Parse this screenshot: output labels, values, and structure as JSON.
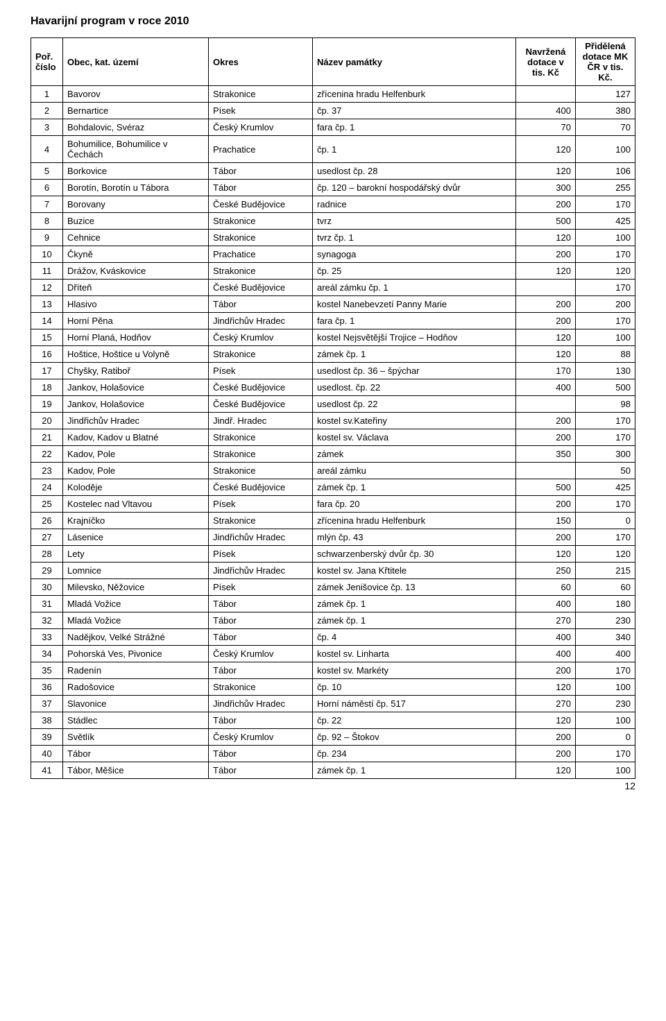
{
  "title": "Havarijní program v roce 2010",
  "page_number": "12",
  "headers": {
    "no": "Poř. číslo",
    "obec": "Obec, kat. území",
    "okres": "Okres",
    "nazev": "Název památky",
    "navrzena": "Navržená dotace v tis. Kč",
    "pridelena": "Přidělená dotace MK ČR v tis. Kč."
  },
  "rows": [
    {
      "no": "1",
      "obec": "Bavorov",
      "okres": "Strakonice",
      "nazev": "zřícenina hradu Helfenburk",
      "nav": "",
      "pri": "127"
    },
    {
      "no": "2",
      "obec": "Bernartice",
      "okres": "Písek",
      "nazev": "čp. 37",
      "nav": "400",
      "pri": "380"
    },
    {
      "no": "3",
      "obec": "Bohdalovic, Svéraz",
      "okres": "Český Krumlov",
      "nazev": "fara čp. 1",
      "nav": "70",
      "pri": "70"
    },
    {
      "no": "4",
      "obec": "Bohumilice, Bohumilice v Čechách",
      "okres": "Prachatice",
      "nazev": "čp. 1",
      "nav": "120",
      "pri": "100"
    },
    {
      "no": "5",
      "obec": "Borkovice",
      "okres": "Tábor",
      "nazev": "usedlost čp. 28",
      "nav": "120",
      "pri": "106"
    },
    {
      "no": "6",
      "obec": "Borotín, Borotín u Tábora",
      "okres": "Tábor",
      "nazev": "čp. 120 – barokní hospodářský dvůr",
      "nav": "300",
      "pri": "255"
    },
    {
      "no": "7",
      "obec": "Borovany",
      "okres": "České Budějovice",
      "nazev": "radnice",
      "nav": "200",
      "pri": "170"
    },
    {
      "no": "8",
      "obec": "Buzice",
      "okres": "Strakonice",
      "nazev": "tvrz",
      "nav": "500",
      "pri": "425"
    },
    {
      "no": "9",
      "obec": "Cehnice",
      "okres": "Strakonice",
      "nazev": "tvrz čp. 1",
      "nav": "120",
      "pri": "100"
    },
    {
      "no": "10",
      "obec": "Čkyně",
      "okres": "Prachatice",
      "nazev": "synagoga",
      "nav": "200",
      "pri": "170"
    },
    {
      "no": "11",
      "obec": "Drážov, Kváskovice",
      "okres": "Strakonice",
      "nazev": "čp. 25",
      "nav": "120",
      "pri": "120"
    },
    {
      "no": "12",
      "obec": "Dříteň",
      "okres": "České Budějovice",
      "nazev": "areál zámku čp. 1",
      "nav": "",
      "pri": "170"
    },
    {
      "no": "13",
      "obec": "Hlasivo",
      "okres": "Tábor",
      "nazev": "kostel Nanebevzetí Panny Marie",
      "nav": "200",
      "pri": "200"
    },
    {
      "no": "14",
      "obec": "Horní Pěna",
      "okres": "Jindřichův Hradec",
      "nazev": "fara čp. 1",
      "nav": "200",
      "pri": "170"
    },
    {
      "no": "15",
      "obec": "Horní Planá, Hodňov",
      "okres": "Český Krumlov",
      "nazev": "kostel Nejsvětější Trojice – Hodňov",
      "nav": "120",
      "pri": "100"
    },
    {
      "no": "16",
      "obec": "Hoštice, Hoštice u Volyně",
      "okres": "Strakonice",
      "nazev": "zámek čp. 1",
      "nav": "120",
      "pri": "88"
    },
    {
      "no": "17",
      "obec": "Chyšky, Ratiboř",
      "okres": "Písek",
      "nazev": "usedlost čp. 36 – špýchar",
      "nav": "170",
      "pri": "130"
    },
    {
      "no": "18",
      "obec": "Jankov, Holašovice",
      "okres": "České Budějovice",
      "nazev": "usedlost. čp. 22",
      "nav": "400",
      "pri": "500"
    },
    {
      "no": "19",
      "obec": "Jankov, Holašovice",
      "okres": "České Budějovice",
      "nazev": "usedlost čp. 22",
      "nav": "",
      "pri": "98"
    },
    {
      "no": "20",
      "obec": "Jindřichův Hradec",
      "okres": "Jindř. Hradec",
      "nazev": "kostel sv.Kateřiny",
      "nav": "200",
      "pri": "170"
    },
    {
      "no": "21",
      "obec": "Kadov, Kadov u Blatné",
      "okres": "Strakonice",
      "nazev": "kostel sv. Václava",
      "nav": "200",
      "pri": "170"
    },
    {
      "no": "22",
      "obec": "Kadov, Pole",
      "okres": "Strakonice",
      "nazev": "zámek",
      "nav": "350",
      "pri": "300"
    },
    {
      "no": "23",
      "obec": "Kadov, Pole",
      "okres": "Strakonice",
      "nazev": "areál zámku",
      "nav": "",
      "pri": "50"
    },
    {
      "no": "24",
      "obec": "Koloděje",
      "okres": "České Budějovice",
      "nazev": "zámek čp. 1",
      "nav": "500",
      "pri": "425"
    },
    {
      "no": "25",
      "obec": "Kostelec  nad Vltavou",
      "okres": "Písek",
      "nazev": "fara čp. 20",
      "nav": "200",
      "pri": "170"
    },
    {
      "no": "26",
      "obec": "Krajníčko",
      "okres": "Strakonice",
      "nazev": "zřícenina hradu Helfenburk",
      "nav": "150",
      "pri": "0"
    },
    {
      "no": "27",
      "obec": "Lásenice",
      "okres": "Jindřichův Hradec",
      "nazev": "mlýn čp. 43",
      "nav": "200",
      "pri": "170"
    },
    {
      "no": "28",
      "obec": "Lety",
      "okres": "Písek",
      "nazev": "schwarzenberský dvůr čp. 30",
      "nav": "120",
      "pri": "120"
    },
    {
      "no": "29",
      "obec": "Lomnice",
      "okres": "Jindřichův Hradec",
      "nazev": "kostel sv. Jana Křtitele",
      "nav": "250",
      "pri": "215"
    },
    {
      "no": "30",
      "obec": "Milevsko, Něžovice",
      "okres": "Písek",
      "nazev": "zámek Jenišovice čp. 13",
      "nav": "60",
      "pri": "60"
    },
    {
      "no": "31",
      "obec": "Mladá Vožice",
      "okres": "Tábor",
      "nazev": "zámek čp. 1",
      "nav": "400",
      "pri": "180"
    },
    {
      "no": "32",
      "obec": "Mladá Vožice",
      "okres": "Tábor",
      "nazev": "zámek čp. 1",
      "nav": "270",
      "pri": "230"
    },
    {
      "no": "33",
      "obec": "Nadějkov, Velké Strážné",
      "okres": "Tábor",
      "nazev": "čp. 4",
      "nav": "400",
      "pri": "340"
    },
    {
      "no": "34",
      "obec": "Pohorská Ves, Pivonice",
      "okres": "Český Krumlov",
      "nazev": "kostel sv. Linharta",
      "nav": "400",
      "pri": "400"
    },
    {
      "no": "35",
      "obec": "Radenín",
      "okres": "Tábor",
      "nazev": "kostel sv. Markéty",
      "nav": "200",
      "pri": "170"
    },
    {
      "no": "36",
      "obec": "Radošovice",
      "okres": "Strakonice",
      "nazev": "čp. 10",
      "nav": "120",
      "pri": "100"
    },
    {
      "no": "37",
      "obec": "Slavonice",
      "okres": "Jindřichův Hradec",
      "nazev": "Horní náměstí čp. 517",
      "nav": "270",
      "pri": "230"
    },
    {
      "no": "38",
      "obec": "Stádlec",
      "okres": "Tábor",
      "nazev": "čp. 22",
      "nav": "120",
      "pri": "100"
    },
    {
      "no": "39",
      "obec": "Světlík",
      "okres": "Český Krumlov",
      "nazev": "čp. 92 – Štokov",
      "nav": "200",
      "pri": "0"
    },
    {
      "no": "40",
      "obec": "Tábor",
      "okres": "Tábor",
      "nazev": "čp. 234",
      "nav": "200",
      "pri": "170"
    },
    {
      "no": "41",
      "obec": "Tábor, Měšice",
      "okres": "Tábor",
      "nazev": "zámek čp. 1",
      "nav": "120",
      "pri": "100"
    }
  ]
}
